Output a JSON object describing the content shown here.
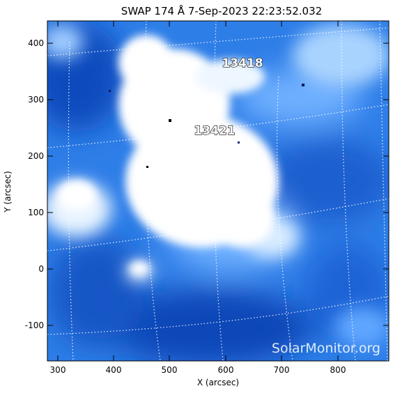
{
  "title": "SWAP 174 Å  7-Sep-2023 22:23:52.032",
  "xaxis": {
    "label": "X (arcsec)",
    "ticks": [
      "300",
      "400",
      "500",
      "600",
      "700",
      "800"
    ],
    "range": [
      280,
      890
    ]
  },
  "yaxis": {
    "label": "Y (arcsec)",
    "ticks": [
      "400",
      "300",
      "200",
      "100",
      "0",
      "-100"
    ],
    "range": [
      -165,
      440
    ]
  },
  "regions": [
    {
      "label": "13418",
      "x": 648,
      "y": 360
    },
    {
      "label": "13421",
      "x": 600,
      "y": 245
    }
  ],
  "watermark": "SolarMonitor.org",
  "colors": {
    "deep_blue": "#0a3fae",
    "mid_blue": "#3d8ef0",
    "light_blue": "#b9dcff",
    "background": "#ffffff"
  }
}
